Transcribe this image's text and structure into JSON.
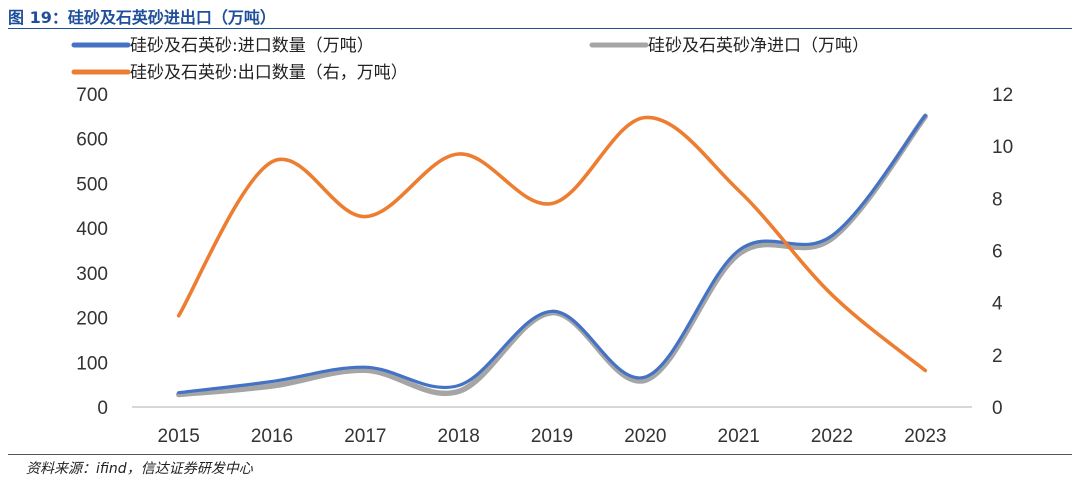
{
  "figure_title": "图 19：硅砂及石英砂进出口（万吨）",
  "source": "资料来源：ifind，信达证券研发中心",
  "chart_data": {
    "type": "line",
    "categories": [
      "2015",
      "2016",
      "2017",
      "2018",
      "2019",
      "2020",
      "2021",
      "2022",
      "2023"
    ],
    "series": [
      {
        "name": "硅砂及石英砂:进口数量（万吨）",
        "axis": "left",
        "color": "#4472c4",
        "values": [
          32,
          57,
          89,
          48,
          214,
          67,
          350,
          383,
          652
        ]
      },
      {
        "name": "硅砂及石英砂净进口（万吨）",
        "axis": "left",
        "color": "#a5a5a5",
        "values": [
          28,
          47,
          82,
          35,
          211,
          60,
          342,
          377,
          650
        ]
      },
      {
        "name": "硅砂及石英砂:出口数量（右，万吨）",
        "axis": "right",
        "color": "#ed7d31",
        "values": [
          3.5,
          9.4,
          7.3,
          9.7,
          7.8,
          11.1,
          8.3,
          4.3,
          1.4
        ]
      }
    ],
    "y_left": {
      "min": 0,
      "max": 700,
      "ticks": [
        "0",
        "100",
        "200",
        "300",
        "400",
        "500",
        "600",
        "700"
      ]
    },
    "y_right": {
      "min": 0,
      "max": 12,
      "ticks": [
        "0",
        "2",
        "4",
        "6",
        "8",
        "10",
        "12"
      ]
    },
    "legend_position": "top",
    "grid": false
  }
}
